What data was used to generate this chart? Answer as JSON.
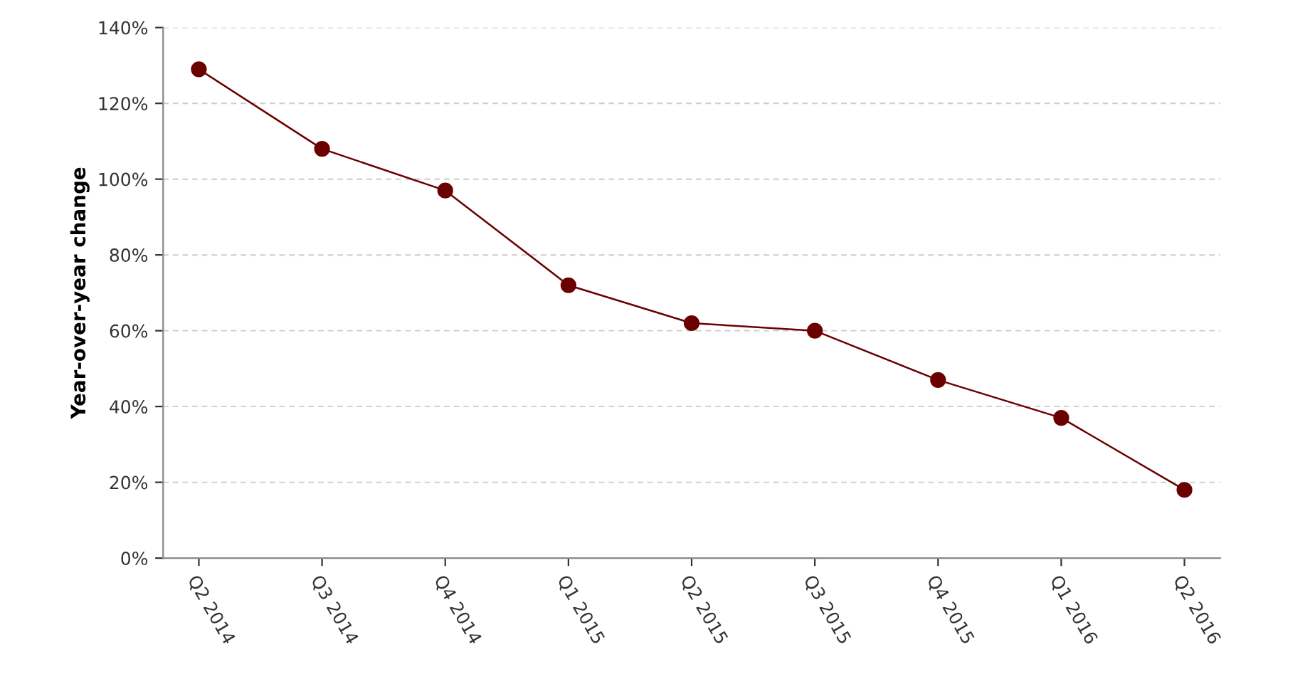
{
  "chart_data": {
    "type": "line",
    "ylabel": "Year-over-year change",
    "categories": [
      "Q2 2014",
      "Q3 2014",
      "Q4 2014",
      "Q1 2015",
      "Q2 2015",
      "Q3 2015",
      "Q4 2015",
      "Q1 2016",
      "Q2 2016"
    ],
    "series": [
      {
        "color": "#6b0000",
        "values": [
          129,
          108,
          97,
          72,
          62,
          60,
          47,
          37,
          18
        ]
      }
    ],
    "ylim": [
      0,
      140
    ],
    "yticks": [
      {
        "value": 0,
        "label": "0%"
      },
      {
        "value": 20,
        "label": "20%"
      },
      {
        "value": 40,
        "label": "40%"
      },
      {
        "value": 60,
        "label": "60%"
      },
      {
        "value": 80,
        "label": "80%"
      },
      {
        "value": 100,
        "label": "100%"
      },
      {
        "value": 120,
        "label": "120%"
      },
      {
        "value": 140,
        "label": "140%"
      }
    ],
    "grid": "y",
    "marker": "circle",
    "line_style": "solid"
  }
}
